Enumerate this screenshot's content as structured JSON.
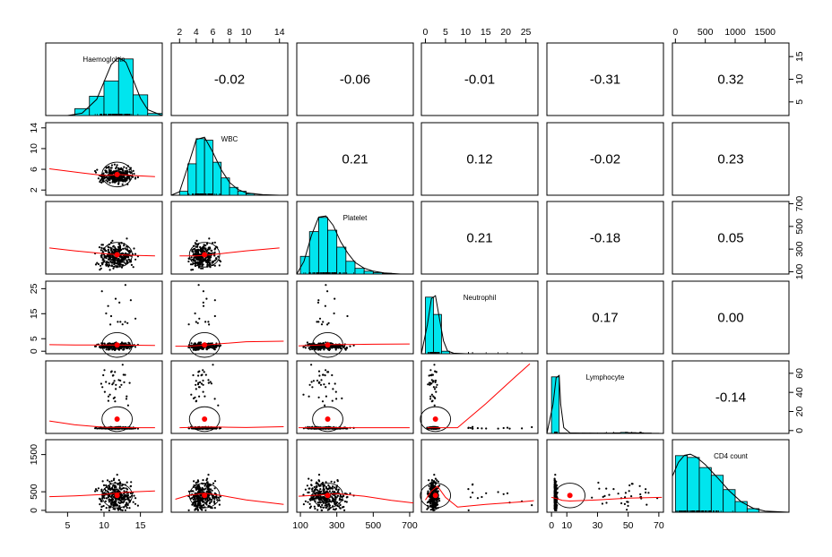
{
  "chart_data": {
    "type": "scatter",
    "variables": [
      "Haemoglobin",
      "WBC",
      "Platelet",
      "Neutrophil",
      "Lymphocyte",
      "CD4 count"
    ],
    "ranges": [
      [
        2,
        18
      ],
      [
        1,
        15
      ],
      [
        80,
        720
      ],
      [
        -1,
        28
      ],
      [
        -3,
        73
      ],
      [
        -50,
        1900
      ]
    ],
    "correlations": [
      {
        "row": 0,
        "col": 1,
        "value": "-0.02"
      },
      {
        "row": 0,
        "col": 2,
        "value": "-0.06"
      },
      {
        "row": 0,
        "col": 3,
        "value": "-0.01"
      },
      {
        "row": 0,
        "col": 4,
        "value": "-0.31"
      },
      {
        "row": 0,
        "col": 5,
        "value": "0.32"
      },
      {
        "row": 1,
        "col": 2,
        "value": "0.21"
      },
      {
        "row": 1,
        "col": 3,
        "value": "0.12"
      },
      {
        "row": 1,
        "col": 4,
        "value": "-0.02"
      },
      {
        "row": 1,
        "col": 5,
        "value": "0.23"
      },
      {
        "row": 2,
        "col": 3,
        "value": "0.21"
      },
      {
        "row": 2,
        "col": 4,
        "value": "-0.18"
      },
      {
        "row": 2,
        "col": 5,
        "value": "0.05"
      },
      {
        "row": 3,
        "col": 4,
        "value": "0.17"
      },
      {
        "row": 3,
        "col": 5,
        "value": "0.00"
      },
      {
        "row": 4,
        "col": 5,
        "value": "-0.14"
      }
    ],
    "ticks": {
      "top": [
        {
          "col": 1,
          "values": [
            2,
            4,
            6,
            8,
            10,
            14
          ],
          "labels": [
            "2",
            "4",
            "6",
            "8",
            "10",
            "14"
          ]
        },
        {
          "col": 3,
          "values": [
            0,
            5,
            10,
            15,
            20,
            25
          ],
          "labels": [
            "0",
            "5",
            "10",
            "15",
            "20",
            "25"
          ]
        },
        {
          "col": 5,
          "values": [
            0,
            500,
            1000,
            1500
          ],
          "labels": [
            "0",
            "500",
            "1000",
            "1500"
          ]
        }
      ],
      "bottom": [
        {
          "col": 0,
          "values": [
            5,
            10,
            15
          ],
          "labels": [
            "5",
            "10",
            "15"
          ]
        },
        {
          "col": 2,
          "values": [
            100,
            300,
            500,
            700
          ],
          "labels": [
            "100",
            "300",
            "500",
            "700"
          ]
        },
        {
          "col": 4,
          "values": [
            0,
            10,
            30,
            50,
            70
          ],
          "labels": [
            "0",
            "10",
            "30",
            "50",
            "70"
          ]
        }
      ],
      "left": [
        {
          "row": 1,
          "values": [
            2,
            6,
            10,
            14
          ],
          "labels": [
            "2",
            "6",
            "10",
            "14"
          ]
        },
        {
          "row": 3,
          "values": [
            0,
            5,
            15,
            25
          ],
          "labels": [
            "0",
            "5",
            "15",
            "25"
          ]
        },
        {
          "row": 5,
          "values": [
            0,
            500,
            1500
          ],
          "labels": [
            "0",
            "500",
            "1500"
          ]
        }
      ],
      "right": [
        {
          "row": 0,
          "values": [
            5,
            10,
            15
          ],
          "labels": [
            "5",
            "10",
            "15"
          ]
        },
        {
          "row": 2,
          "values": [
            100,
            300,
            500,
            700
          ],
          "labels": [
            "100",
            "300",
            "500",
            "700"
          ]
        },
        {
          "row": 4,
          "values": [
            0,
            20,
            40,
            60
          ],
          "labels": [
            "0",
            "20",
            "40",
            "60"
          ]
        }
      ]
    },
    "histograms": [
      {
        "variable": "Haemoglobin",
        "breaks": [
          6,
          8,
          10,
          12,
          14,
          16,
          18
        ],
        "counts": [
          10,
          28,
          50,
          82,
          30,
          3
        ]
      },
      {
        "variable": "WBC",
        "breaks": [
          2,
          3,
          4,
          5,
          6,
          7,
          8,
          9,
          10,
          11
        ],
        "counts": [
          5,
          40,
          72,
          70,
          42,
          22,
          10,
          5,
          2
        ]
      },
      {
        "variable": "Platelet",
        "breaks": [
          100,
          150,
          200,
          250,
          300,
          350,
          400,
          450,
          500,
          550,
          600
        ],
        "counts": [
          25,
          60,
          80,
          62,
          38,
          18,
          8,
          4,
          2,
          1
        ]
      },
      {
        "variable": "Neutrophil",
        "breaks": [
          0,
          2,
          4,
          6
        ],
        "counts": [
          180,
          125,
          8
        ]
      },
      {
        "variable": "Lymphocyte",
        "breaks": [
          0,
          5,
          10,
          15,
          20,
          25,
          30,
          35,
          40,
          45,
          50,
          55,
          60,
          65,
          70
        ],
        "counts": [
          280,
          2,
          1,
          1,
          2,
          2,
          2,
          2,
          3,
          5,
          4,
          3,
          2,
          1
        ]
      },
      {
        "variable": "CD4 count",
        "breaks": [
          0,
          200,
          400,
          600,
          800,
          1000,
          1200,
          1400
        ],
        "counts": [
          95,
          92,
          75,
          62,
          38,
          18,
          6
        ]
      }
    ],
    "density": [
      {
        "variable": "Haemoglobin",
        "x": [
          5,
          7,
          9,
          10,
          11,
          12,
          13,
          14,
          15,
          16,
          18
        ],
        "y": [
          0.0,
          0.04,
          0.28,
          0.58,
          0.88,
          1.0,
          0.92,
          0.62,
          0.3,
          0.1,
          0.0
        ]
      },
      {
        "variable": "WBC",
        "x": [
          1,
          2,
          3,
          4,
          5,
          6,
          7,
          8,
          9,
          10,
          12,
          14
        ],
        "y": [
          0.0,
          0.06,
          0.5,
          0.96,
          1.0,
          0.74,
          0.44,
          0.22,
          0.1,
          0.04,
          0.01,
          0.0
        ]
      },
      {
        "variable": "Platelet",
        "x": [
          80,
          120,
          160,
          200,
          240,
          280,
          320,
          360,
          400,
          450,
          500,
          560,
          650,
          720
        ],
        "y": [
          0.0,
          0.22,
          0.66,
          0.98,
          1.0,
          0.84,
          0.56,
          0.36,
          0.2,
          0.1,
          0.05,
          0.02,
          0.0,
          0.0
        ]
      },
      {
        "variable": "Neutrophil",
        "x": [
          -1,
          0.5,
          1.5,
          2.5,
          3.5,
          4.5,
          5.5,
          7,
          10,
          28
        ],
        "y": [
          0.0,
          0.5,
          0.95,
          1.0,
          0.6,
          0.22,
          0.05,
          0.01,
          0.0,
          0.0
        ]
      },
      {
        "variable": "Lymphocyte",
        "x": [
          -3,
          1,
          3,
          5,
          6,
          8,
          12,
          30,
          73
        ],
        "y": [
          0.0,
          0.5,
          0.96,
          1.0,
          0.5,
          0.1,
          0.01,
          0.0,
          0.0
        ]
      },
      {
        "variable": "CD4 count",
        "x": [
          -50,
          50,
          150,
          250,
          350,
          500,
          700,
          900,
          1100,
          1300,
          1500,
          1900
        ],
        "y": [
          0.62,
          0.86,
          0.98,
          1.0,
          0.95,
          0.82,
          0.6,
          0.37,
          0.18,
          0.07,
          0.02,
          0.0
        ]
      }
    ],
    "means": [
      11.8,
      5.0,
      250,
      2.5,
      12.0,
      400
    ],
    "loess": [
      {
        "row": 1,
        "col": 0,
        "x": [
          2.5,
          7,
          10,
          12,
          14,
          17
        ],
        "y": [
          6.1,
          5.3,
          4.8,
          5.0,
          4.8,
          4.6
        ]
      },
      {
        "row": 2,
        "col": 0,
        "x": [
          2.5,
          6,
          10,
          12,
          14,
          17
        ],
        "y": [
          310,
          285,
          260,
          250,
          245,
          240
        ]
      },
      {
        "row": 2,
        "col": 1,
        "x": [
          2,
          4,
          5,
          7,
          10,
          14
        ],
        "y": [
          240,
          240,
          245,
          260,
          285,
          310
        ]
      },
      {
        "row": 3,
        "col": 0,
        "x": [
          2.5,
          6,
          10,
          12,
          14,
          17
        ],
        "y": [
          2.6,
          2.5,
          2.5,
          2.5,
          2.4,
          2.3
        ]
      },
      {
        "row": 3,
        "col": 1,
        "x": [
          1.5,
          3,
          5,
          7,
          10,
          14.5
        ],
        "y": [
          2.0,
          2.0,
          2.4,
          3.0,
          3.8,
          4.0
        ]
      },
      {
        "row": 3,
        "col": 2,
        "x": [
          90,
          150,
          250,
          350,
          500,
          700
        ],
        "y": [
          2.1,
          2.3,
          2.6,
          2.7,
          2.8,
          2.9
        ]
      },
      {
        "row": 4,
        "col": 0,
        "x": [
          2.5,
          6,
          10,
          12,
          14,
          17
        ],
        "y": [
          10,
          6,
          3.5,
          3.2,
          3.0,
          3.0
        ]
      },
      {
        "row": 4,
        "col": 1,
        "x": [
          2,
          4,
          6,
          8,
          10,
          14.5
        ],
        "y": [
          3,
          3.5,
          3.8,
          3.5,
          3.2,
          4
        ]
      },
      {
        "row": 4,
        "col": 2,
        "x": [
          90,
          200,
          300,
          400,
          550,
          700
        ],
        "y": [
          3,
          3,
          3,
          3,
          3,
          3
        ]
      },
      {
        "row": 4,
        "col": 3,
        "x": [
          0.5,
          2,
          4,
          8,
          15,
          22,
          26
        ],
        "y": [
          3,
          3,
          3,
          3,
          28,
          55,
          70
        ]
      },
      {
        "row": 5,
        "col": 0,
        "x": [
          2.5,
          6,
          10,
          12,
          14,
          17
        ],
        "y": [
          370,
          390,
          430,
          470,
          500,
          520
        ]
      },
      {
        "row": 5,
        "col": 1,
        "x": [
          1.5,
          3,
          5,
          7,
          10,
          14.5
        ],
        "y": [
          300,
          400,
          460,
          400,
          280,
          160
        ]
      },
      {
        "row": 5,
        "col": 2,
        "x": [
          90,
          200,
          300,
          450,
          600,
          720
        ],
        "y": [
          380,
          410,
          450,
          380,
          270,
          200
        ]
      },
      {
        "row": 5,
        "col": 3,
        "x": [
          0,
          1.5,
          3,
          5,
          8,
          15,
          24,
          27
        ],
        "y": [
          280,
          520,
          650,
          350,
          90,
          160,
          230,
          260
        ]
      },
      {
        "row": 5,
        "col": 4,
        "x": [
          0,
          3,
          7,
          12,
          30,
          50,
          72
        ],
        "y": [
          350,
          320,
          270,
          250,
          280,
          330,
          350
        ]
      }
    ]
  }
}
